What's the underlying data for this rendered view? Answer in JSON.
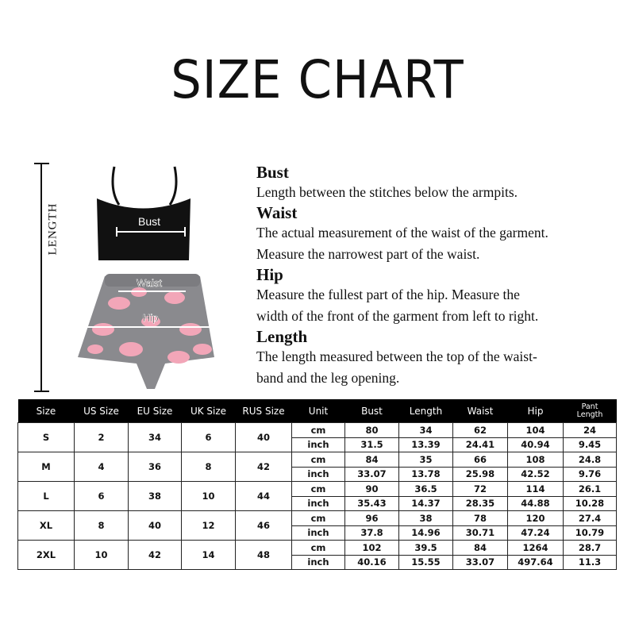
{
  "title": "SIZE CHART",
  "illustration": {
    "length_label": "LENGTH",
    "labels": {
      "bust": "Bust",
      "waist": "Waist",
      "hip": "Hip"
    },
    "colors": {
      "top": "#111111",
      "shorts": "#8a8a8e",
      "cloud": "#f2a6b8"
    }
  },
  "descriptions": [
    {
      "heading": "Bust",
      "lines": [
        "Length between the stitches below the armpits."
      ]
    },
    {
      "heading": "Waist",
      "lines": [
        "The actual measurement of the waist of the garment.",
        "Measure the narrowest part of the waist."
      ]
    },
    {
      "heading": "Hip",
      "lines": [
        "Measure the fullest part of the  hip. Measure the",
        "width of the front of the garment from left to right."
      ]
    },
    {
      "heading": "Length",
      "lines": [
        "The length measured between the top of the waist-",
        "band and the leg opening."
      ]
    }
  ],
  "table": {
    "headers": [
      "Size",
      "US Size",
      "EU Size",
      "UK Size",
      "RUS Size",
      "Unit",
      "Bust",
      "Length",
      "Waist",
      "Hip",
      "Pant Length"
    ],
    "rows": [
      {
        "size": "S",
        "us": "2",
        "eu": "34",
        "uk": "6",
        "rus": "40",
        "cm": [
          "cm",
          "80",
          "34",
          "62",
          "104",
          "24"
        ],
        "inch": [
          "inch",
          "31.5",
          "13.39",
          "24.41",
          "40.94",
          "9.45"
        ]
      },
      {
        "size": "M",
        "us": "4",
        "eu": "36",
        "uk": "8",
        "rus": "42",
        "cm": [
          "cm",
          "84",
          "35",
          "66",
          "108",
          "24.8"
        ],
        "inch": [
          "inch",
          "33.07",
          "13.78",
          "25.98",
          "42.52",
          "9.76"
        ]
      },
      {
        "size": "L",
        "us": "6",
        "eu": "38",
        "uk": "10",
        "rus": "44",
        "cm": [
          "cm",
          "90",
          "36.5",
          "72",
          "114",
          "26.1"
        ],
        "inch": [
          "inch",
          "35.43",
          "14.37",
          "28.35",
          "44.88",
          "10.28"
        ]
      },
      {
        "size": "XL",
        "us": "8",
        "eu": "40",
        "uk": "12",
        "rus": "46",
        "cm": [
          "cm",
          "96",
          "38",
          "78",
          "120",
          "27.4"
        ],
        "inch": [
          "inch",
          "37.8",
          "14.96",
          "30.71",
          "47.24",
          "10.79"
        ]
      },
      {
        "size": "2XL",
        "us": "10",
        "eu": "42",
        "uk": "14",
        "rus": "48",
        "cm": [
          "cm",
          "102",
          "39.5",
          "84",
          "1264",
          "28.7"
        ],
        "inch": [
          "inch",
          "40.16",
          "15.55",
          "33.07",
          "497.64",
          "11.3"
        ]
      }
    ]
  }
}
